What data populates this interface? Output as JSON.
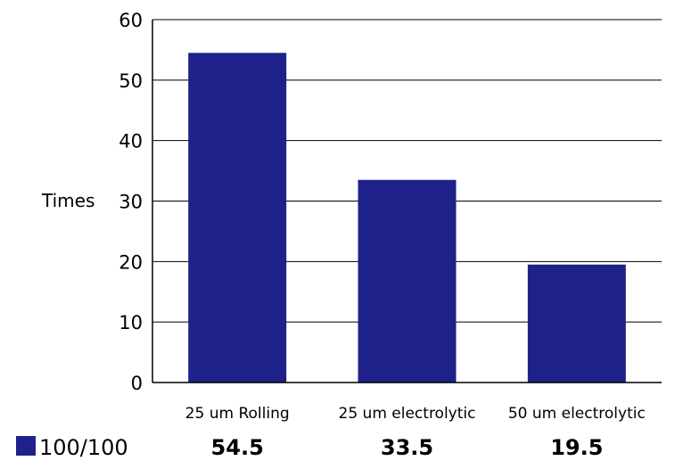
{
  "chart_data": {
    "type": "bar",
    "title": "",
    "ylabel": "Times",
    "xlabel": "",
    "ylim": [
      0,
      60
    ],
    "yticks": [
      0,
      10,
      20,
      30,
      40,
      50,
      60
    ],
    "grid": true,
    "categories": [
      "25 um Rolling",
      "25 um electrolytic",
      "50 um electrolytic"
    ],
    "series": [
      {
        "name": "100/100",
        "values": [
          54.5,
          33.5,
          19.5
        ],
        "value_labels": [
          "54.5",
          "33.5",
          "19.5"
        ],
        "color": "#1e2189"
      }
    ],
    "legend": "bottom-left data table"
  }
}
